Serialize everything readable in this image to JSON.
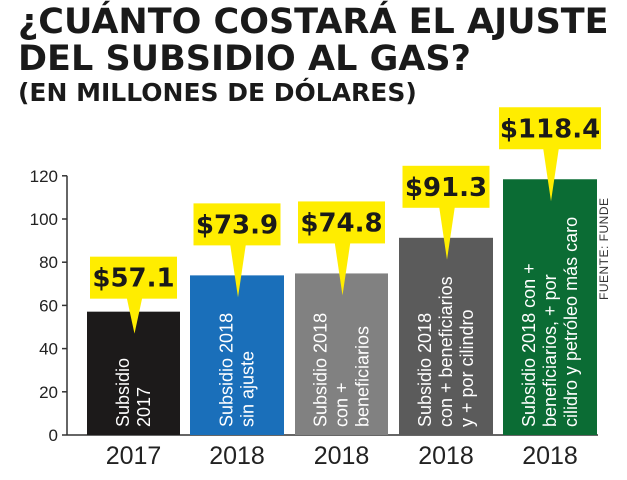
{
  "chart_data": {
    "type": "bar",
    "title_lines": [
      "¿CUÁNTO COSTARÁ EL AJUSTE",
      "DEL SUBSIDIO AL GAS?",
      "(EN MILLONES DE DÓLARES)"
    ],
    "categories": [
      "2017",
      "2018",
      "2018",
      "2018",
      "2018"
    ],
    "values": [
      57.1,
      73.9,
      74.8,
      91.3,
      118.4
    ],
    "value_labels": [
      "$57.1",
      "$73.9",
      "$74.8",
      "$91.3",
      "$118.4"
    ],
    "bar_labels": [
      [
        "Subsidio",
        "2017"
      ],
      [
        "Subsidio 2018",
        "sin ajuste"
      ],
      [
        "Subsidio 2018",
        "con +",
        "beneficiarios"
      ],
      [
        "Subsidio 2018",
        "con + beneficiarios",
        "y + por cilindro"
      ],
      [
        "Subsidio 2018 con +",
        "beneficiarios, + por",
        "cilidro y petróleo más caro"
      ]
    ],
    "bar_colors": [
      "#1c1a1a",
      "#1a6fba",
      "#818181",
      "#5b5b5b",
      "#0b6c34"
    ],
    "yticks": [
      0,
      20,
      40,
      60,
      80,
      100,
      120
    ],
    "ylim": [
      0,
      120
    ],
    "grid": false,
    "callout_color": "#ffed00",
    "source": "FUENTE: FUNDE"
  }
}
